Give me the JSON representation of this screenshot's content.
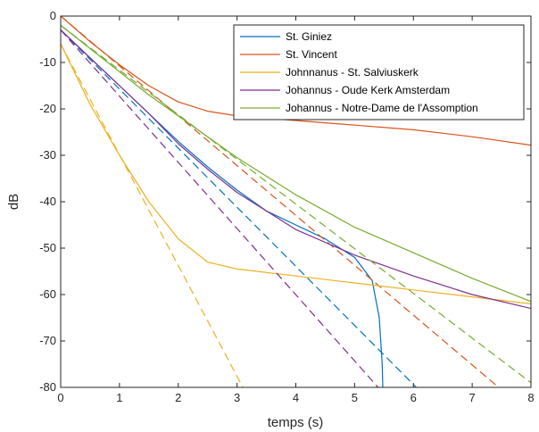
{
  "chart_data": {
    "type": "line",
    "title": "",
    "xlabel": "temps (s)",
    "ylabel": "dB",
    "xlim": [
      0,
      8
    ],
    "ylim": [
      -80,
      0
    ],
    "xticks": [
      0,
      1,
      2,
      3,
      4,
      5,
      6,
      7,
      8
    ],
    "yticks": [
      0,
      -10,
      -20,
      -30,
      -40,
      -50,
      -60,
      -70,
      -80
    ],
    "xtick_labels": [
      "0",
      "1",
      "2",
      "3",
      "4",
      "5",
      "6",
      "7",
      "8"
    ],
    "ytick_labels": [
      "0",
      "-10",
      "-20",
      "-30",
      "-40",
      "-50",
      "-60",
      "-70",
      "-80"
    ],
    "grid": false,
    "legend_position": "top-right",
    "series": [
      {
        "name": "St. Giniez",
        "color": "#0072BD",
        "values": [
          [
            0,
            -3
          ],
          [
            0.5,
            -9
          ],
          [
            1,
            -15
          ],
          [
            1.5,
            -21
          ],
          [
            2,
            -27
          ],
          [
            2.5,
            -32.5
          ],
          [
            3,
            -37.5
          ],
          [
            3.5,
            -42
          ],
          [
            4,
            -45
          ],
          [
            4.5,
            -48
          ],
          [
            5,
            -52
          ],
          [
            5.3,
            -57
          ],
          [
            5.42,
            -65
          ],
          [
            5.47,
            -75
          ],
          [
            5.48,
            -80
          ]
        ],
        "fit": [
          [
            0,
            -3
          ],
          [
            6.05,
            -80
          ]
        ]
      },
      {
        "name": "St. Vincent",
        "color": "#D95319",
        "values": [
          [
            0,
            0
          ],
          [
            0.5,
            -5.5
          ],
          [
            1,
            -10.5
          ],
          [
            1.5,
            -15
          ],
          [
            2,
            -18.5
          ],
          [
            2.5,
            -20.5
          ],
          [
            3,
            -21.5
          ],
          [
            4,
            -22.5
          ],
          [
            5,
            -23.5
          ],
          [
            6,
            -24.5
          ],
          [
            7,
            -26
          ],
          [
            8,
            -27.8
          ]
        ],
        "fit": [
          [
            0,
            0
          ],
          [
            7.45,
            -80
          ]
        ]
      },
      {
        "name": "Johnnanus - St. Salviuskerk",
        "color": "#EDB120",
        "values": [
          [
            0,
            -6
          ],
          [
            0.5,
            -19
          ],
          [
            1,
            -30
          ],
          [
            1.5,
            -40
          ],
          [
            2,
            -48
          ],
          [
            2.5,
            -53
          ],
          [
            3,
            -54.5
          ],
          [
            4,
            -56
          ],
          [
            5,
            -57.5
          ],
          [
            6,
            -59
          ],
          [
            7,
            -60.5
          ],
          [
            8,
            -62
          ]
        ],
        "fit": [
          [
            0,
            -6
          ],
          [
            3.1,
            -80
          ]
        ]
      },
      {
        "name": "Johannus - Oude Kerk Amsterdam",
        "color": "#7E2F8E",
        "values": [
          [
            0,
            -3
          ],
          [
            0.5,
            -9
          ],
          [
            1,
            -15
          ],
          [
            1.5,
            -21
          ],
          [
            2,
            -27.5
          ],
          [
            2.5,
            -33
          ],
          [
            3,
            -38
          ],
          [
            3.5,
            -42
          ],
          [
            4,
            -46
          ],
          [
            5,
            -51.5
          ],
          [
            6,
            -56
          ],
          [
            7,
            -60
          ],
          [
            8,
            -63
          ]
        ],
        "fit": [
          [
            0,
            -3
          ],
          [
            5.4,
            -80
          ]
        ]
      },
      {
        "name": "Johannus - Notre-Dame de l'Assomption",
        "color": "#77AC30",
        "values": [
          [
            0,
            -2
          ],
          [
            0.5,
            -7
          ],
          [
            1,
            -12
          ],
          [
            1.5,
            -17
          ],
          [
            2,
            -21.5
          ],
          [
            2.5,
            -26
          ],
          [
            3,
            -30.5
          ],
          [
            4,
            -38.5
          ],
          [
            5,
            -45.5
          ],
          [
            6,
            -51
          ],
          [
            7,
            -56.5
          ],
          [
            8,
            -61.5
          ]
        ],
        "fit": [
          [
            0,
            -2
          ],
          [
            8,
            -79
          ]
        ]
      }
    ]
  }
}
